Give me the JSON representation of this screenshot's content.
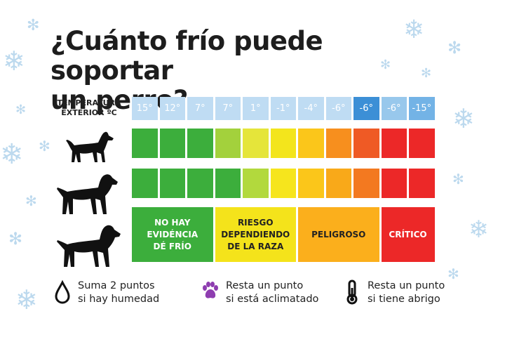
{
  "title": "¿Cuánto frío puede soportar\nun perro?",
  "temperature_label": "TEMPERATURA\nEXTERIOR ºC",
  "temperatures": [
    "15°",
    "12°",
    "7°",
    "7°",
    "1°",
    "-1°",
    "-4°",
    "-6°",
    "-6°",
    "-6°",
    "-15°"
  ],
  "temperature_colors": [
    "#bfdcf3",
    "#bfdcf3",
    "#bfdcf3",
    "#bfdcf3",
    "#bfdcf3",
    "#bfdcf3",
    "#bfdcf3",
    "#bfdcf3",
    "#3c8fd6",
    "#98c8ec",
    "#73b3e6"
  ],
  "small_dog_colors": [
    "#3cae3c",
    "#3cae3c",
    "#3cae3c",
    "#a3d13c",
    "#e5e53a",
    "#f3e51c",
    "#fbc61a",
    "#f78f1e",
    "#ef5a25",
    "#ec2828",
    "#ec2828"
  ],
  "medium_dog_colors": [
    "#3cae3c",
    "#3cae3c",
    "#3cae3c",
    "#3cae3c",
    "#b2d93d",
    "#f6e51d",
    "#fbc61a",
    "#f9a919",
    "#f37920",
    "#ec2828",
    "#ec2828"
  ],
  "large_dog_zones": [
    {
      "label": "NO HAY\nEVIDÉNCIA\nDÉ FRÍO",
      "color": "#3cae3c",
      "text_color": "#ffffff",
      "span": 3
    },
    {
      "label": "RIESGO\nDEPENDIENDO\nDE LA RAZA",
      "color": "#f4e31b",
      "text_color": "#222222",
      "span": 3
    },
    {
      "label": "PELIGROSO",
      "color": "#fbaf1c",
      "text_color": "#222222",
      "span": 3
    },
    {
      "label": "CRÍTICO",
      "color": "#ec2828",
      "text_color": "#ffffff",
      "span": 2
    }
  ],
  "legend": [
    {
      "icon": "droplet-icon",
      "text": "Suma 2 puntos\nsi hay humedad"
    },
    {
      "icon": "paw-icon",
      "text": "Resta un punto\nsi está aclimatado",
      "color": "#8e3db0"
    },
    {
      "icon": "thermometer-icon",
      "text": "Resta un punto\nsi tiene abrigo"
    }
  ]
}
